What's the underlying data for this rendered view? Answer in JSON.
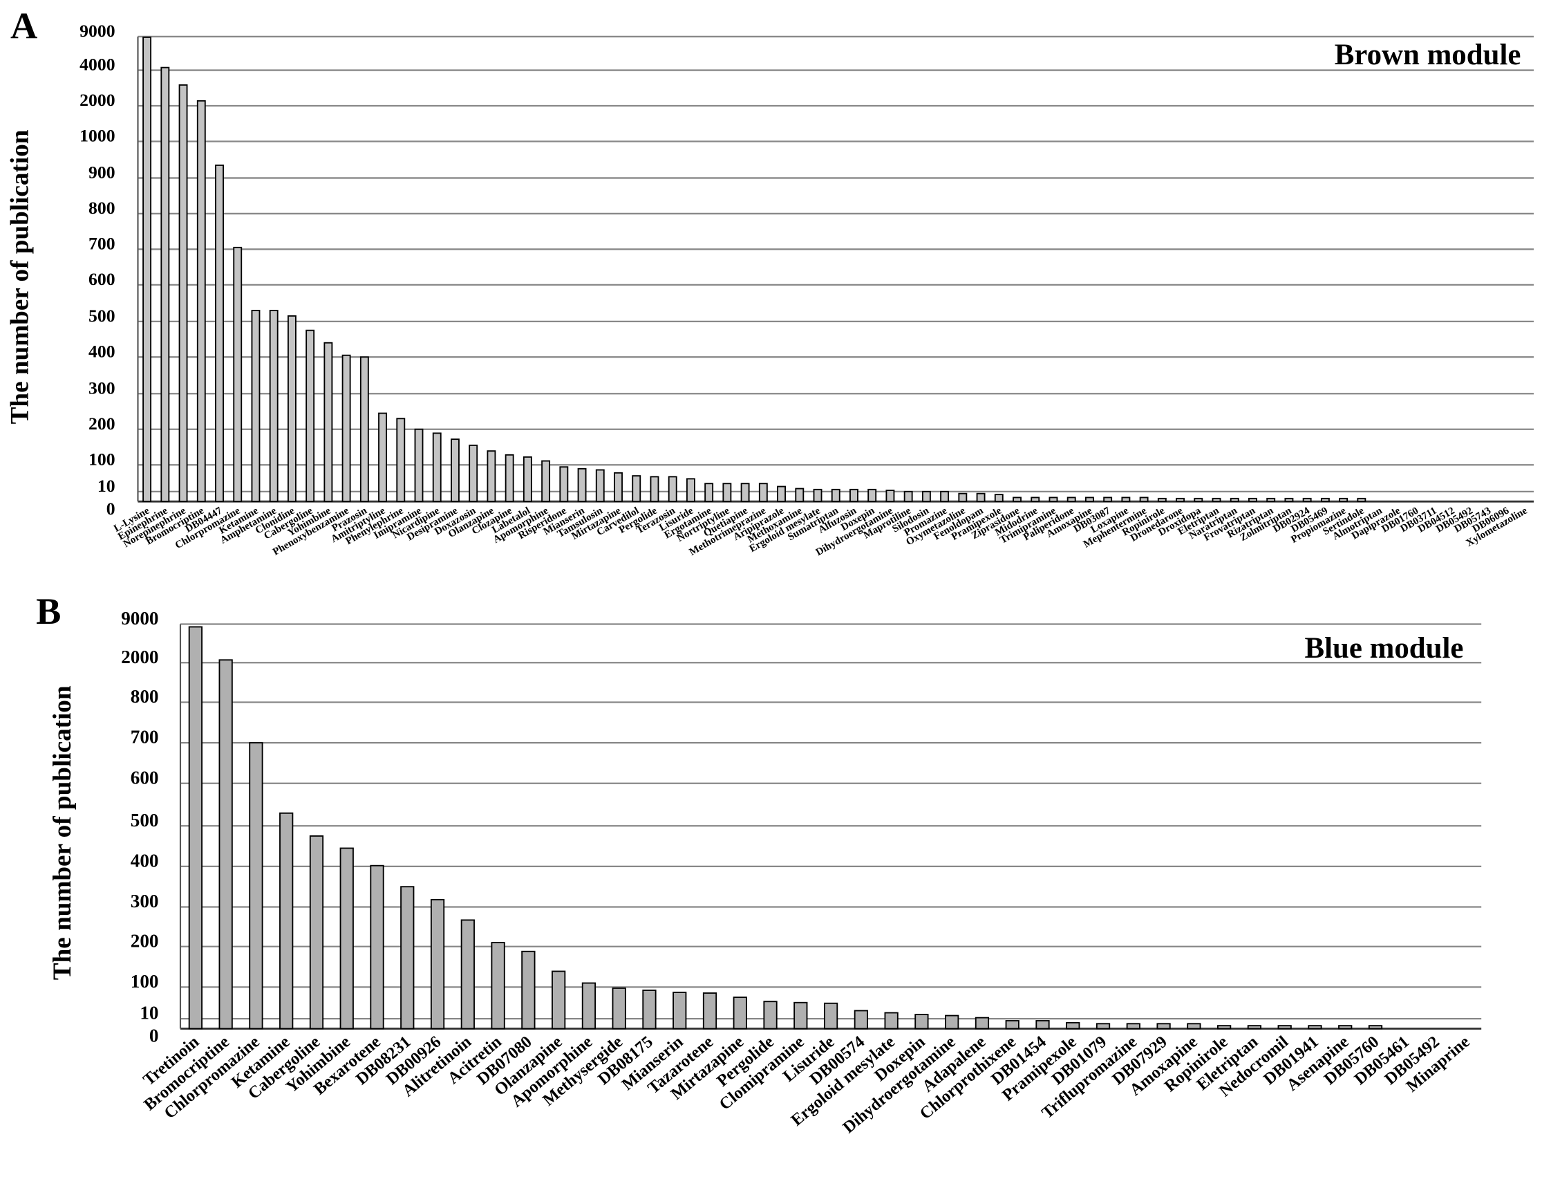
{
  "chart_data": [
    {
      "type": "bar",
      "panel_label": "A",
      "title": "Brown module",
      "y_label": "The number of publication",
      "color": "#c4c4c4",
      "grid": true,
      "ylim": [
        0,
        9000
      ],
      "yticks": [
        0,
        10,
        100,
        200,
        300,
        400,
        500,
        600,
        700,
        800,
        900,
        1000,
        2000,
        4000,
        9000
      ],
      "categories": [
        "L-Lysine",
        "Epinephrine",
        "Norepinephrine",
        "Bromocriptine",
        "DB04447",
        "Chlorpromazine",
        "Ketamine",
        "Amphetamine",
        "Clonidine",
        "Cabergoline",
        "Yohimbine",
        "Phenoxybenzamine",
        "Prazosin",
        "Amitriptyline",
        "Phenylephrine",
        "Imipramine",
        "Nicardipine",
        "Desipramine",
        "Doxazosin",
        "Olanzapine",
        "Clozapine",
        "Labetalol",
        "Apomorphine",
        "Risperidone",
        "Mianserin",
        "Tamsulosin",
        "Mirtazapine",
        "Carvedilol",
        "Pergolide",
        "Terazosin",
        "Lisuride",
        "Ergotamine",
        "Nortriptyline",
        "Quetiapine",
        "Methotrimeprazine",
        "Aripiprazole",
        "Methoxamine",
        "Ergoloid mesylate",
        "Sumatriptan",
        "Alfuzosin",
        "Doxepin",
        "Dihydroergotamine",
        "Maprotiline",
        "Silodosin",
        "Promazine",
        "Oxymetazoline",
        "Fenoldopam",
        "Pramipexole",
        "Ziprasidone",
        "Midodrine",
        "Trimipramine",
        "Paliperidone",
        "Amoxapine",
        "DB03087",
        "Loxapine",
        "Mephentermine",
        "Ropinirole",
        "Dronedarone",
        "Droxidopa",
        "Eletriptan",
        "Naratriptan",
        "Frovatriptan",
        "Rizatriptan",
        "Zolmitriptan",
        "DB02924",
        "DB05469",
        "Propiomazine",
        "Sertindole",
        "Almotriptan",
        "Dapiprazole",
        "DB01760",
        "DB03711",
        "DB04512",
        "DB05492",
        "DB05743",
        "DB06096",
        "Xylometazoline"
      ],
      "values": [
        8900,
        4400,
        3170,
        2280,
        935,
        705,
        530,
        530,
        515,
        475,
        440,
        405,
        400,
        245,
        230,
        200,
        189,
        172,
        155,
        139,
        128,
        122,
        111,
        93,
        87,
        83,
        73,
        63,
        60,
        60,
        53,
        37,
        37,
        37,
        37,
        27,
        20,
        17,
        17,
        17,
        17,
        14,
        10,
        10,
        10,
        8,
        8,
        7,
        4,
        4,
        4,
        4,
        4,
        4,
        4,
        4,
        3,
        3,
        3,
        3,
        3,
        3,
        3,
        3,
        3,
        3,
        3,
        3,
        0,
        0,
        0,
        0,
        0,
        0,
        0,
        0,
        0
      ]
    },
    {
      "type": "bar",
      "panel_label": "B",
      "title": "Blue module",
      "y_label": "The number of publication",
      "color": "#b0b0b0",
      "grid": true,
      "ylim": [
        0,
        9000
      ],
      "yticks": [
        0,
        10,
        100,
        200,
        300,
        400,
        500,
        600,
        700,
        800,
        2000,
        9000
      ],
      "categories": [
        "Tretinoin",
        "Bromocriptine",
        "Chlorpromazine",
        "Ketamine",
        "Cabergoline",
        "Yohimbine",
        "Bexarotene",
        "DB08231",
        "DB00926",
        "Alitretinoin",
        "Acitretin",
        "DB07080",
        "Olanzapine",
        "Apomorphine",
        "Methysergide",
        "DB08175",
        "Mianserin",
        "Tazarotene",
        "Mirtazapine",
        "Pergolide",
        "Clomipramine",
        "Lisuride",
        "DB00574",
        "Ergoloid mesylate",
        "Doxepin",
        "Dihydroergotamine",
        "Adapalene",
        "Chlorprothixene",
        "DB01454",
        "Pramipexole",
        "DB01079",
        "Triflupromazine",
        "DB07929",
        "Amoxapine",
        "Ropinirole",
        "Eletriptan",
        "Nedocromil",
        "DB01941",
        "Asenapine",
        "DB05760",
        "DB05461",
        "DB05492",
        "Minaprine"
      ],
      "values": [
        8500,
        2500,
        700,
        530,
        475,
        445,
        402,
        350,
        318,
        267,
        210,
        188,
        139,
        110,
        97,
        91,
        85,
        83,
        71,
        59,
        56,
        54,
        33,
        27,
        22,
        19,
        13,
        8,
        8,
        6,
        5,
        5,
        5,
        5,
        3,
        3,
        3,
        3,
        3,
        3,
        0,
        0,
        0
      ]
    }
  ]
}
